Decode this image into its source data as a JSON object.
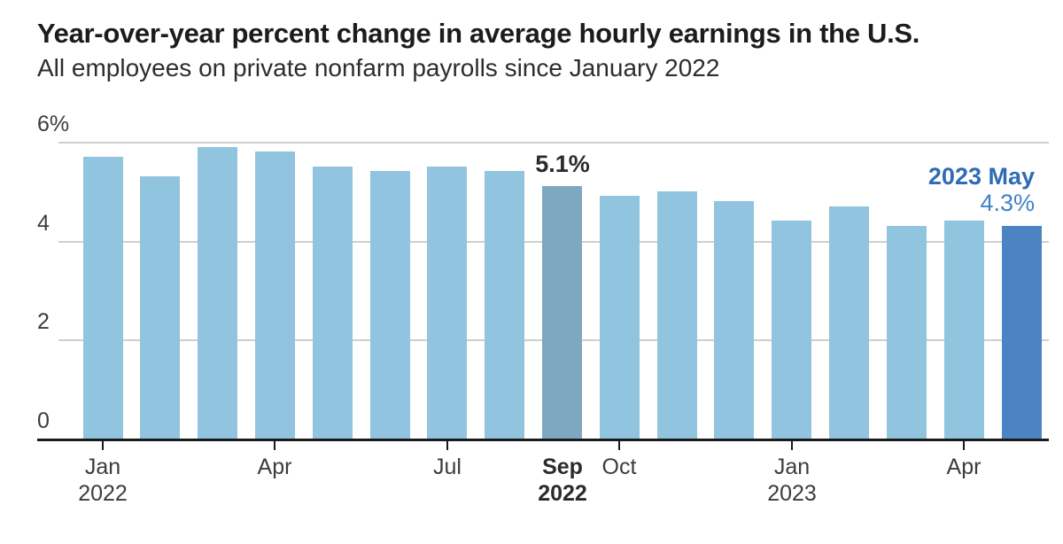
{
  "chart_data": {
    "type": "bar",
    "title": "Year-over-year percent change in average hourly earnings in the U.S.",
    "subtitle": "All employees on private nonfarm payrolls since January 2022",
    "unit": "%",
    "categories": [
      "Jan 2022",
      "Feb 2022",
      "Mar 2022",
      "Apr 2022",
      "May 2022",
      "Jun 2022",
      "Jul 2022",
      "Aug 2022",
      "Sep 2022",
      "Oct 2022",
      "Nov 2022",
      "Dec 2022",
      "Jan 2023",
      "Feb 2023",
      "Mar 2023",
      "Apr 2023",
      "May 2023"
    ],
    "values": [
      5.7,
      5.3,
      5.9,
      5.8,
      5.5,
      5.4,
      5.5,
      5.4,
      5.1,
      4.9,
      5.0,
      4.8,
      4.4,
      4.7,
      4.3,
      4.4,
      4.3
    ],
    "ylim": [
      0,
      6
    ],
    "grid": true,
    "legend": false,
    "yticks": [
      {
        "value": 6,
        "label": "6%"
      },
      {
        "value": 4,
        "label": "4"
      },
      {
        "value": 2,
        "label": "2"
      },
      {
        "value": 0,
        "label": "0"
      }
    ],
    "xticks": [
      {
        "index": 0,
        "lines": [
          "Jan",
          "2022"
        ],
        "bold": false,
        "tick": true
      },
      {
        "index": 3,
        "lines": [
          "Apr"
        ],
        "bold": false,
        "tick": true
      },
      {
        "index": 6,
        "lines": [
          "Jul"
        ],
        "bold": false,
        "tick": true
      },
      {
        "index": 8,
        "lines": [
          "Sep",
          "2022"
        ],
        "bold": true,
        "tick": false
      },
      {
        "index": 9,
        "lines": [
          "Oct"
        ],
        "bold": false,
        "tick": true
      },
      {
        "index": 12,
        "lines": [
          "Jan",
          "2023"
        ],
        "bold": false,
        "tick": true
      },
      {
        "index": 15,
        "lines": [
          "Apr"
        ],
        "bold": false,
        "tick": true
      }
    ],
    "highlights": {
      "sep_2022": {
        "index": 8,
        "label": "5.1%"
      },
      "may_2023": {
        "index": 16,
        "label_line1": "2023 May",
        "label_line2": "4.3%"
      }
    }
  },
  "colors": {
    "bar": "#91c4de",
    "bar_highlight_sep": "#7fa8c0",
    "bar_highlight_may": "#4c83c3",
    "annotation_sep_text": "#2b2b2b",
    "annotation_may_line1": "#2e6cb4",
    "annotation_may_line2": "#4282c6",
    "gridline": "#cfcfcf",
    "axis_line": "#1a1a1a",
    "axis_text": "#3c3c3c",
    "axis_text_bold": "#2b2b2b",
    "title_text": "#1c1c1c",
    "subtitle_text": "#2d2d2d"
  }
}
